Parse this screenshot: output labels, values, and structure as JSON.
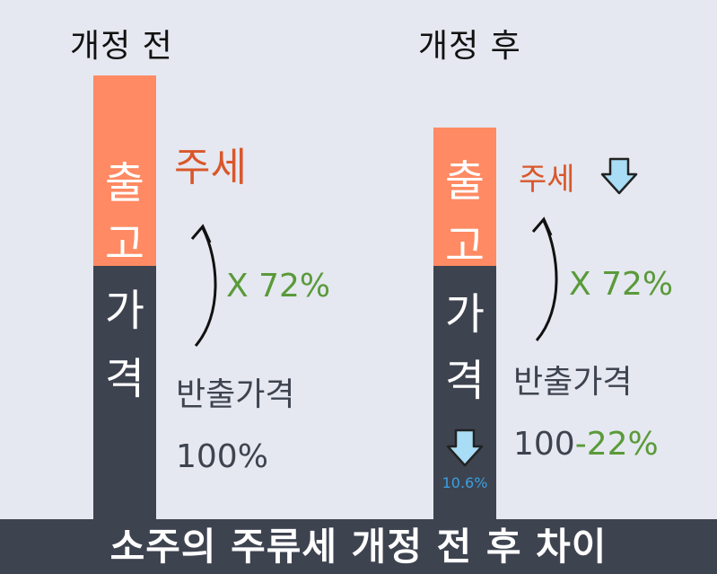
{
  "left_panel": {
    "title": "개정 전",
    "bar_chars": [
      "출",
      "고",
      "가",
      "격"
    ],
    "tax_label": "주세",
    "multiplier_label": "X 72%",
    "base_label": "반출가격",
    "base_value": "100%"
  },
  "right_panel": {
    "title": "개정 후",
    "bar_chars": [
      "출",
      "고",
      "가",
      "격"
    ],
    "tax_label": "주세",
    "multiplier_label": "X 72%",
    "base_label": "반출가격",
    "base_value_prefix": "100",
    "base_value_reduction": "-22%",
    "bar_reduction": "10.6%"
  },
  "footer": {
    "caption": "소주의 주류세 개정 전 후 차이"
  },
  "colors": {
    "tax_segment": "#ff8a63",
    "price_segment": "#3e4350",
    "tax_text": "#d9572b",
    "multiplier_text": "#5a9a3a",
    "down_arrow": "#a9dcf5",
    "reduction_text": "#3aa0e0"
  },
  "icons": [
    "down-arrow-icon",
    "curved-arrow-icon"
  ]
}
